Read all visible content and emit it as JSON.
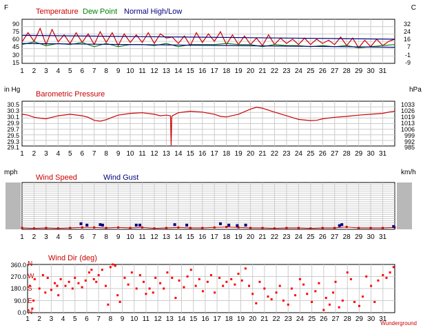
{
  "chart_data": [
    {
      "type": "line",
      "unit_left": "F",
      "unit_right": "C",
      "legend": [
        {
          "label": "Temperature",
          "color": "#cc0000"
        },
        {
          "label": "Dew Point",
          "color": "#008000"
        },
        {
          "label": "Normal High/Low",
          "color": "#000080"
        }
      ],
      "y_ticks": [
        "90",
        "75",
        "60",
        "45",
        "30",
        "15"
      ],
      "y2_ticks": [
        "32",
        "24",
        "16",
        "7",
        "-1",
        "-9"
      ],
      "ylim": [
        15,
        97
      ],
      "x_ticks": [
        "1",
        "2",
        "3",
        "4",
        "5",
        "6",
        "7",
        "8",
        "9",
        "10",
        "11",
        "12",
        "13",
        "14",
        "15",
        "16",
        "17",
        "18",
        "19",
        "20",
        "21",
        "22",
        "23",
        "24",
        "25",
        "26",
        "27",
        "28",
        "29",
        "30",
        "31"
      ],
      "xlim": [
        1,
        32
      ],
      "series": [
        {
          "name": "Temperature",
          "color": "#cc0000",
          "x": [
            1,
            1.5,
            2,
            2.5,
            3,
            3.5,
            4,
            4.5,
            5,
            5.5,
            6,
            6.5,
            7,
            7.5,
            8,
            8.5,
            9,
            9.5,
            10,
            10.5,
            11,
            11.5,
            12,
            12.5,
            13,
            13.5,
            14,
            14.5,
            15,
            15.5,
            16,
            16.5,
            17,
            17.5,
            18,
            18.5,
            19,
            19.5,
            20,
            20.5,
            21,
            21.5,
            22,
            22.5,
            23,
            23.5,
            24,
            24.5,
            25,
            25.5,
            26,
            26.5,
            27,
            27.5,
            28,
            28.5,
            29,
            29.5,
            30,
            30.5,
            31,
            31.5,
            32
          ],
          "values": [
            55,
            72,
            56,
            80,
            50,
            78,
            55,
            68,
            52,
            72,
            54,
            70,
            50,
            74,
            54,
            72,
            48,
            70,
            54,
            68,
            54,
            72,
            52,
            70,
            62,
            64,
            52,
            66,
            48,
            72,
            54,
            70,
            56,
            74,
            50,
            68,
            50,
            66,
            50,
            62,
            48,
            68,
            50,
            62,
            52,
            60,
            50,
            62,
            50,
            60,
            52,
            58,
            50,
            64,
            48,
            62,
            44,
            58,
            46,
            60,
            48,
            56,
            60
          ]
        },
        {
          "name": "Dew Point",
          "color": "#008000",
          "x": [
            1,
            2,
            3,
            4,
            5,
            6,
            7,
            8,
            9,
            10,
            11,
            12,
            13,
            14,
            15,
            16,
            17,
            18,
            19,
            20,
            21,
            22,
            23,
            24,
            25,
            26,
            27,
            28,
            29,
            30,
            31,
            32
          ],
          "values": [
            50,
            55,
            48,
            52,
            50,
            54,
            46,
            52,
            46,
            50,
            50,
            48,
            52,
            46,
            50,
            50,
            50,
            52,
            50,
            50,
            46,
            50,
            48,
            48,
            46,
            48,
            46,
            48,
            44,
            46,
            48,
            50
          ]
        },
        {
          "name": "Normal High",
          "color": "#000080",
          "x": [
            1,
            32
          ],
          "values": [
            67,
            60
          ]
        },
        {
          "name": "Normal Low",
          "color": "#000080",
          "x": [
            1,
            32
          ],
          "values": [
            52,
            45
          ]
        }
      ]
    },
    {
      "type": "line",
      "unit_left": "in Hg",
      "unit_right": "hPa",
      "legend": [
        {
          "label": "Barometric Pressure",
          "color": "#cc0000"
        }
      ],
      "y_ticks": [
        "30.5",
        "30.3",
        "30.1",
        "29.9",
        "29.7",
        "29.5",
        "29.3",
        "29.1"
      ],
      "y2_ticks": [
        "1033",
        "1026",
        "1019",
        "1013",
        "1006",
        "999",
        "992",
        "985"
      ],
      "ylim": [
        29.1,
        30.58
      ],
      "x_ticks": [
        "1",
        "2",
        "3",
        "4",
        "5",
        "6",
        "7",
        "8",
        "9",
        "10",
        "11",
        "12",
        "13",
        "14",
        "15",
        "16",
        "17",
        "18",
        "19",
        "20",
        "21",
        "22",
        "23",
        "24",
        "25",
        "26",
        "27",
        "28",
        "29",
        "30",
        "31"
      ],
      "xlim": [
        1,
        32
      ],
      "series": [
        {
          "name": "Barometric Pressure",
          "color": "#cc0000",
          "x": [
            1,
            1.5,
            2,
            2.5,
            3,
            3.5,
            4,
            5,
            6,
            6.5,
            7,
            7.5,
            8,
            8.5,
            9,
            10,
            11,
            12,
            12.5,
            13,
            13.35,
            13.4,
            13.45,
            13.5,
            14,
            15,
            16,
            17,
            17.5,
            18,
            19,
            20,
            20.5,
            21,
            22,
            23,
            24,
            25,
            25.5,
            26,
            27,
            28,
            29,
            30,
            31,
            31.5,
            32
          ],
          "values": [
            30.15,
            30.12,
            30.05,
            30.02,
            30.0,
            30.05,
            30.1,
            30.15,
            30.1,
            30.05,
            29.95,
            29.92,
            29.97,
            30.05,
            30.12,
            30.18,
            30.2,
            30.15,
            30.1,
            30.12,
            30.1,
            29.12,
            30.05,
            30.1,
            30.2,
            30.25,
            30.22,
            30.15,
            30.08,
            30.06,
            30.15,
            30.32,
            30.38,
            30.35,
            30.22,
            30.1,
            29.98,
            29.94,
            29.95,
            30.0,
            30.05,
            30.08,
            30.12,
            30.15,
            30.18,
            30.22,
            30.25
          ]
        }
      ]
    },
    {
      "type": "scatter",
      "unit_left": "mph",
      "unit_right": "km/h",
      "legend": [
        {
          "label": "Wind Speed",
          "color": "#cc0000"
        },
        {
          "label": "Wind Gust",
          "color": "#000080"
        }
      ],
      "x_ticks": [
        "1",
        "2",
        "3",
        "4",
        "5",
        "6",
        "7",
        "8",
        "9",
        "10",
        "11",
        "12",
        "13",
        "14",
        "15",
        "16",
        "17",
        "18",
        "19",
        "20",
        "21",
        "22",
        "23",
        "24",
        "25",
        "26",
        "27",
        "28",
        "29",
        "30",
        "31"
      ],
      "xlim": [
        1,
        32
      ],
      "ylim": [
        0,
        100
      ],
      "series": [
        {
          "name": "Wind Speed",
          "color": "#cc0000",
          "x": [
            1,
            2,
            3,
            4,
            5,
            6,
            7,
            8,
            9,
            10,
            11,
            12,
            13,
            14,
            15,
            16,
            17,
            18,
            19,
            20,
            21,
            22,
            23,
            24,
            25,
            26,
            27,
            28,
            29,
            30,
            31,
            32
          ],
          "values": [
            3,
            2,
            3,
            2,
            3,
            4,
            4,
            3,
            4,
            3,
            4,
            2,
            3,
            4,
            3,
            3,
            4,
            5,
            4,
            3,
            3,
            2,
            3,
            3,
            2,
            3,
            3,
            5,
            3,
            3,
            3,
            4
          ]
        },
        {
          "name": "Wind Gust",
          "color": "#000080",
          "x": [
            5.9,
            6.4,
            7.5,
            7.7,
            10.5,
            10.8,
            13.7,
            14.7,
            17.5,
            18.2,
            18.9,
            19.6,
            27.4,
            27.6,
            31.9
          ],
          "values": [
            12,
            9,
            10,
            9,
            9,
            9,
            10,
            9,
            12,
            9,
            8,
            9,
            8,
            10,
            6
          ]
        }
      ]
    },
    {
      "type": "scatter",
      "title": "Wind Dir (deg)",
      "left_letters": [
        "N",
        "W",
        "S",
        "E",
        "N"
      ],
      "y_ticks": [
        "360.0",
        "270.0",
        "180.0",
        "90.0",
        "0.0"
      ],
      "ylim": [
        0,
        360
      ],
      "x_ticks": [
        "1",
        "2",
        "3",
        "4",
        "5",
        "6",
        "7",
        "8",
        "9",
        "10",
        "11",
        "12",
        "13",
        "14",
        "15",
        "16",
        "17",
        "18",
        "19",
        "20",
        "21",
        "22",
        "23",
        "24",
        "25",
        "26",
        "27",
        "28",
        "29",
        "30",
        "31"
      ],
      "xlim": [
        1,
        32
      ],
      "watermark": "Wunderground",
      "series": [
        {
          "name": "Wind Dir",
          "color": "#ff0000",
          "x": [
            1.2,
            1.4,
            1.5,
            1.6,
            2.0,
            2.3,
            2.5,
            2.7,
            3.0,
            3.3,
            3.5,
            3.6,
            3.8,
            4.2,
            4.5,
            4.8,
            5.0,
            5.3,
            5.6,
            5.9,
            6.2,
            6.4,
            6.6,
            6.8,
            7.0,
            7.3,
            7.6,
            7.8,
            8.0,
            8.2,
            8.4,
            8.6,
            8.8,
            9.2,
            9.5,
            9.8,
            10.2,
            10.5,
            10.8,
            11.0,
            11.3,
            11.6,
            11.8,
            12.2,
            12.5,
            12.8,
            13.2,
            13.5,
            13.8,
            14.2,
            14.5,
            14.8,
            15.2,
            15.5,
            15.8,
            16.2,
            16.5,
            16.8,
            17.2,
            17.5,
            17.8,
            18.2,
            18.5,
            18.8,
            19.1,
            19.4,
            19.7,
            20.0,
            20.3,
            20.6,
            21.0,
            21.3,
            21.6,
            22.0,
            22.3,
            22.6,
            23.0,
            23.3,
            23.6,
            24.0,
            24.3,
            24.6,
            25.0,
            25.3,
            25.6,
            26.0,
            26.2,
            26.5,
            26.8,
            27.0,
            27.3,
            27.6,
            28.0,
            28.3,
            28.6,
            29.0,
            29.3,
            29.6,
            30.0,
            30.3,
            30.6,
            31.0,
            31.3,
            31.6,
            31.9
          ],
          "values": [
            200,
            30,
            90,
            250,
            180,
            280,
            150,
            260,
            170,
            220,
            200,
            130,
            250,
            200,
            230,
            180,
            260,
            220,
            190,
            240,
            300,
            320,
            250,
            230,
            280,
            320,
            200,
            60,
            340,
            360,
            350,
            130,
            80,
            260,
            210,
            300,
            180,
            280,
            230,
            140,
            180,
            150,
            260,
            220,
            180,
            300,
            260,
            110,
            240,
            190,
            270,
            320,
            200,
            250,
            160,
            230,
            280,
            150,
            260,
            200,
            230,
            250,
            210,
            290,
            240,
            330,
            200,
            140,
            70,
            230,
            180,
            120,
            100,
            150,
            200,
            90,
            60,
            180,
            130,
            250,
            210,
            140,
            80,
            160,
            220,
            20,
            110,
            60,
            150,
            230,
            40,
            90,
            300,
            250,
            80,
            50,
            120,
            270,
            200,
            80,
            240,
            280,
            260,
            300,
            340
          ]
        }
      ]
    }
  ]
}
